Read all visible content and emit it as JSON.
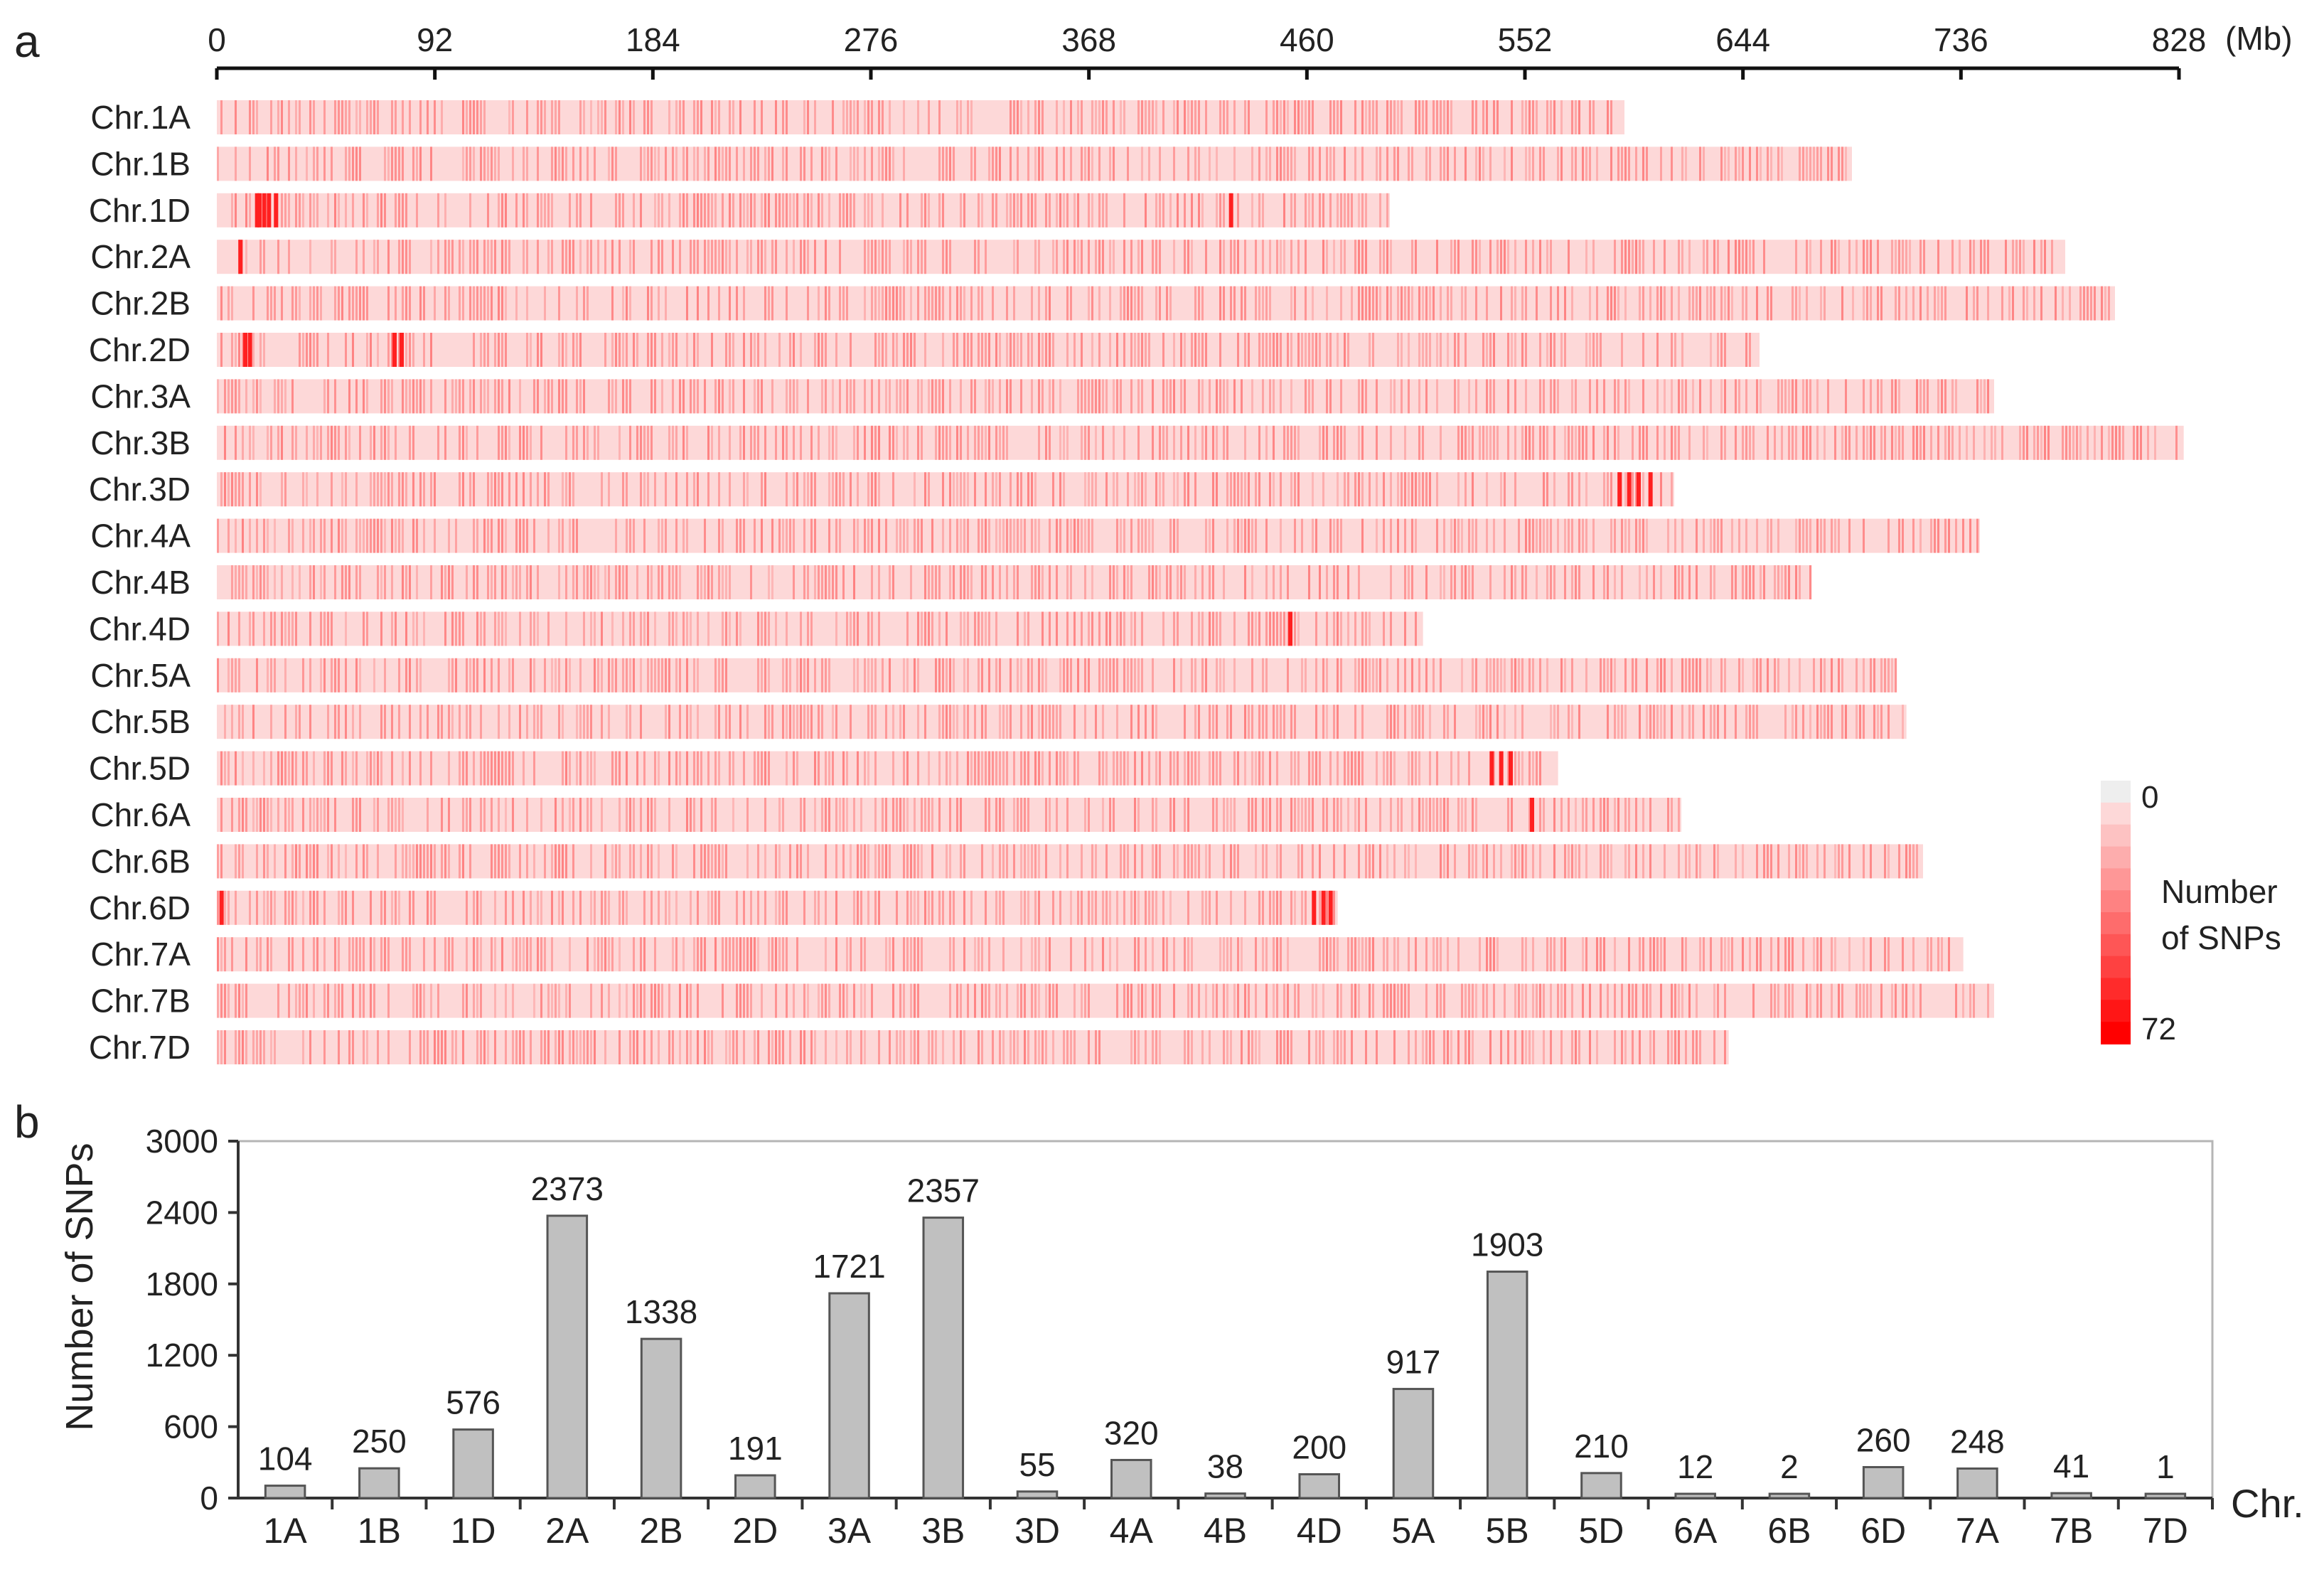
{
  "panel_labels": {
    "a": "a",
    "b": "b"
  },
  "chart_data": [
    {
      "type": "heatmap",
      "panel": "a",
      "title": "",
      "x_unit": "(Mb)",
      "x_ticks": [
        0,
        92,
        184,
        276,
        368,
        460,
        552,
        644,
        736,
        828
      ],
      "x_range": [
        0,
        828
      ],
      "chromosomes": [
        {
          "label": "Chr.1A",
          "length": 594
        },
        {
          "label": "Chr.1B",
          "length": 690
        },
        {
          "label": "Chr.1D",
          "length": 495
        },
        {
          "label": "Chr.2A",
          "length": 780
        },
        {
          "label": "Chr.2B",
          "length": 801
        },
        {
          "label": "Chr.2D",
          "length": 651
        },
        {
          "label": "Chr.3A",
          "length": 750
        },
        {
          "label": "Chr.3B",
          "length": 830
        },
        {
          "label": "Chr.3D",
          "length": 615
        },
        {
          "label": "Chr.4A",
          "length": 744
        },
        {
          "label": "Chr.4B",
          "length": 673
        },
        {
          "label": "Chr.4D",
          "length": 509
        },
        {
          "label": "Chr.5A",
          "length": 709
        },
        {
          "label": "Chr.5B",
          "length": 713
        },
        {
          "label": "Chr.5D",
          "length": 566
        },
        {
          "label": "Chr.6A",
          "length": 618
        },
        {
          "label": "Chr.6B",
          "length": 720
        },
        {
          "label": "Chr.6D",
          "length": 473
        },
        {
          "label": "Chr.7A",
          "length": 737
        },
        {
          "label": "Chr.7B",
          "length": 750
        },
        {
          "label": "Chr.7D",
          "length": 638
        }
      ],
      "hotspots": [
        {
          "chr": 2,
          "positions_mb": [
            17,
            18,
            20,
            22,
            25,
            428
          ]
        },
        {
          "chr": 3,
          "positions_mb": [
            10
          ]
        },
        {
          "chr": 5,
          "positions_mb": [
            12,
            14,
            75,
            78
          ]
        },
        {
          "chr": 8,
          "positions_mb": [
            592,
            596,
            600,
            605
          ]
        },
        {
          "chr": 11,
          "positions_mb": [
            453
          ]
        },
        {
          "chr": 14,
          "positions_mb": [
            538,
            542,
            546
          ]
        },
        {
          "chr": 15,
          "positions_mb": [
            555
          ]
        },
        {
          "chr": 17,
          "positions_mb": [
            2,
            463,
            467,
            470
          ]
        }
      ],
      "legend": {
        "title": "Number of SNPs",
        "min_label": "0",
        "max_label": "72",
        "min": 0,
        "max": 72,
        "low_color": "#eeeeee",
        "mid_color": "#fdd8d8",
        "high_color": "#ff0000"
      }
    },
    {
      "type": "bar",
      "panel": "b",
      "title": "",
      "xlabel": "Chr.",
      "ylabel": "Number of SNPs",
      "ylim": [
        0,
        3000
      ],
      "y_ticks": [
        0,
        600,
        1200,
        1800,
        2400,
        3000
      ],
      "categories": [
        "1A",
        "1B",
        "1D",
        "2A",
        "2B",
        "2D",
        "3A",
        "3B",
        "3D",
        "4A",
        "4B",
        "4D",
        "5A",
        "5B",
        "5D",
        "6A",
        "6B",
        "6D",
        "7A",
        "7B",
        "7D"
      ],
      "values": [
        104,
        250,
        576,
        2373,
        1338,
        191,
        1721,
        2357,
        55,
        320,
        38,
        200,
        917,
        1903,
        210,
        12,
        2,
        260,
        248,
        41,
        1
      ],
      "bar_color": "#c0c0c0",
      "bar_edge_color": "#555555"
    }
  ]
}
